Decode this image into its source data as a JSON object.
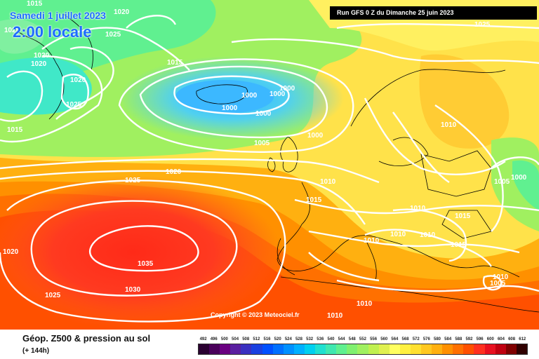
{
  "header": {
    "date": "Samedi 1 juillet 2023",
    "time": "2:00 locale",
    "run": "Run GFS 0 Z du Dimanche 25 juin 2023"
  },
  "copyright": "Copyright © 2023 Meteociel.fr",
  "footer": {
    "title": "Géop. Z500 & pression au sol",
    "subtitle": "(+ 144h)"
  },
  "scale": {
    "labels": [
      "492",
      "496",
      "500",
      "504",
      "508",
      "512",
      "516",
      "520",
      "524",
      "528",
      "532",
      "536",
      "540",
      "544",
      "548",
      "552",
      "556",
      "560",
      "564",
      "568",
      "572",
      "576",
      "580",
      "584",
      "588",
      "592",
      "596",
      "600",
      "604",
      "608",
      "612"
    ],
    "colors": [
      "#2a0030",
      "#4a005a",
      "#6a0080",
      "#5a1fa0",
      "#3a30c0",
      "#1a40e0",
      "#0050ff",
      "#0070ff",
      "#0090ff",
      "#00b0ff",
      "#00d0f0",
      "#20e0d0",
      "#40e8b0",
      "#60f090",
      "#80f070",
      "#a0f060",
      "#c0f050",
      "#e0f050",
      "#ffff60",
      "#fff040",
      "#ffe030",
      "#ffc820",
      "#ffb010",
      "#ff9000",
      "#ff7000",
      "#ff5000",
      "#ff3020",
      "#e81020",
      "#c00010",
      "#800000",
      "#300000"
    ]
  },
  "isobar_labels": [
    "1015",
    "1020",
    "1025",
    "1020",
    "1020",
    "1020",
    "1025",
    "1015",
    "1020",
    "1025",
    "1000",
    "1000",
    "1000",
    "1000",
    "1000",
    "1000",
    "1015",
    "1005",
    "1020",
    "1025",
    "1010",
    "1015",
    "1035",
    "1030",
    "1025",
    "1020",
    "1010",
    "1010",
    "1010",
    "1010",
    "1015",
    "1015",
    "1005",
    "1000",
    "1010",
    "1005",
    "1010",
    "1010",
    "1010"
  ],
  "colors": {
    "low": "#3cb8ff",
    "high": "#ff2020",
    "isobar": "#ffffff",
    "date_text": "#1e6cff"
  }
}
